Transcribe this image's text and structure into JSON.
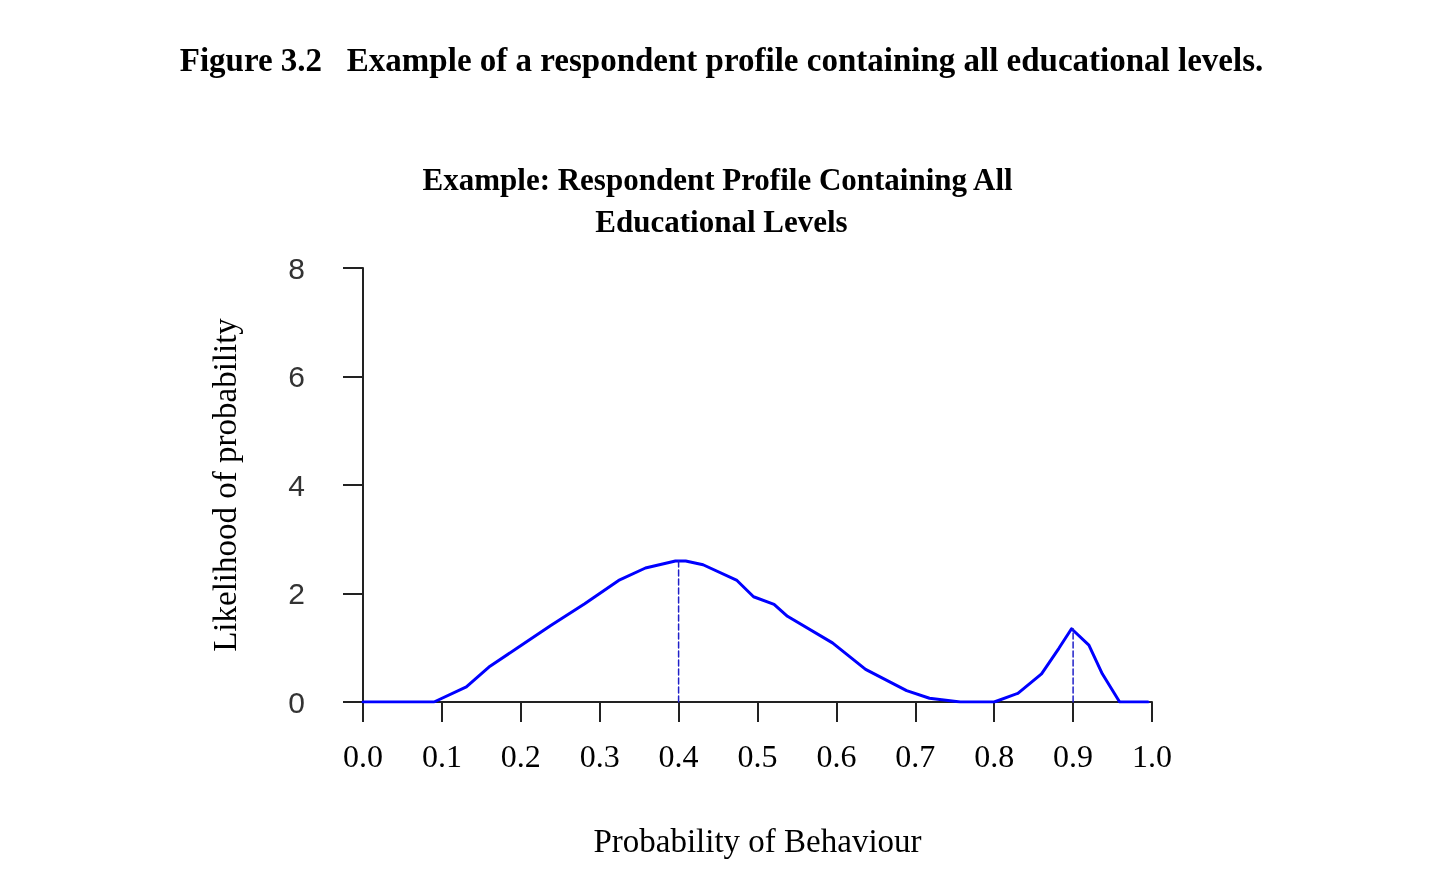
{
  "chart_data": {
    "type": "line",
    "title": "Figure 3.2   Example of a respondent profile containing all educational levels.",
    "subtitle": "Example: Respondent Profile Containing All Educational Levels",
    "xlabel": "Probability of Behaviour",
    "ylabel": "Likelihood of probability",
    "xlim": [
      0,
      1
    ],
    "xticks": [
      {
        "value": 0,
        "label": "0.0"
      },
      0.1,
      0.2,
      0.3,
      0.4,
      0.5,
      0.6,
      0.7,
      0.8,
      0.9,
      {
        "value": 1,
        "label": "1.0"
      }
    ],
    "ylim": [
      0,
      8
    ],
    "yticks": [
      0,
      2,
      4,
      6,
      8
    ],
    "grid": false,
    "marker": "none",
    "series": [
      {
        "color": "#0000ff",
        "line_style": "solid",
        "x": [
          0,
          0.09,
          0.131,
          0.161,
          0.196,
          0.238,
          0.281,
          0.324,
          0.358,
          0.396,
          0.409,
          0.431,
          0.474,
          0.495,
          0.521,
          0.538,
          0.595,
          0.637,
          0.689,
          0.718,
          0.757,
          0.8,
          0.83,
          0.86,
          0.882,
          0.898,
          0.92,
          0.937,
          0.959,
          0.995
        ],
        "values": [
          0,
          0,
          0.28,
          0.66,
          1.0,
          1.41,
          1.81,
          2.24,
          2.47,
          2.6,
          2.6,
          2.53,
          2.24,
          1.94,
          1.8,
          1.58,
          1.09,
          0.6,
          0.21,
          0.07,
          0,
          0,
          0.16,
          0.52,
          0.99,
          1.35,
          1.05,
          0.52,
          0,
          0
        ]
      },
      {
        "color": "#2020c8",
        "line_style": "dashed",
        "x": [
          0.4,
          0.4
        ],
        "values": [
          0,
          2.6
        ]
      },
      {
        "color": "#2020c8",
        "line_style": "dashed",
        "x": [
          0.9,
          0.9
        ],
        "values": [
          0,
          1.35
        ]
      }
    ]
  }
}
